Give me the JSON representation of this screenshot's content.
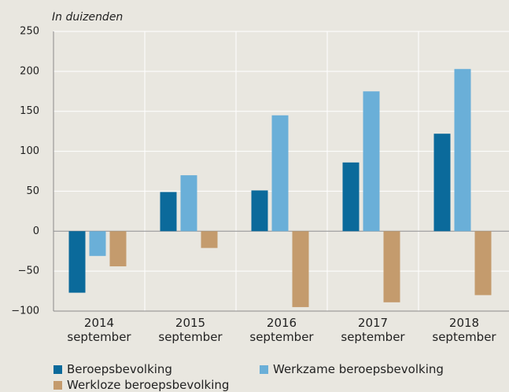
{
  "chart_data": {
    "type": "bar",
    "ylabel": "In duizenden",
    "categories": [
      "2014\nseptember",
      "2015\nseptember",
      "2016\nseptember",
      "2017\nseptember",
      "2018\nseptember"
    ],
    "series": [
      {
        "name": "Beroepsbevolking",
        "color": "#0b6a9b",
        "values": [
          -77,
          49,
          51,
          86,
          122
        ]
      },
      {
        "name": "Werkzame beroepsbevolking",
        "color": "#6aafd8",
        "values": [
          -31,
          70,
          145,
          175,
          203
        ]
      },
      {
        "name": "Werkloze beroepsbevolking",
        "color": "#c49b6d",
        "values": [
          -44,
          -21,
          -95,
          -89,
          -80
        ]
      }
    ],
    "ylim": [
      -100,
      250
    ],
    "yticks": [
      {
        "value": -100,
        "label": "−100"
      },
      {
        "value": -50,
        "label": "−50"
      },
      0,
      50,
      100,
      150,
      200,
      250
    ],
    "grid": true
  }
}
